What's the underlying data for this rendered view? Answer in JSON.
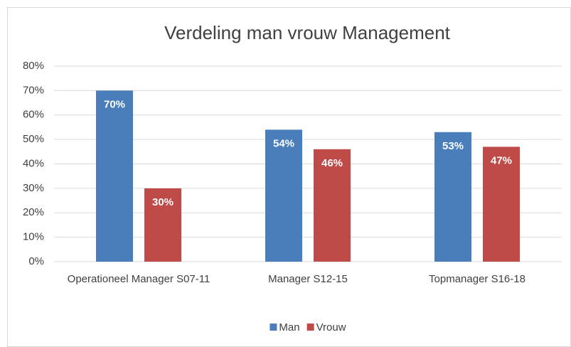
{
  "chart_data": {
    "type": "bar",
    "title": "Verdeling man vrouw Management",
    "categories": [
      "Operationeel Manager S07-11",
      "Manager S12-15",
      "Topmanager S16-18"
    ],
    "series": [
      {
        "name": "Man",
        "color": "#4a7ebb",
        "values": [
          70,
          54,
          53
        ],
        "value_labels": [
          "70%",
          "54%",
          "53%"
        ]
      },
      {
        "name": "Vrouw",
        "color": "#be4b48",
        "values": [
          30,
          46,
          47
        ],
        "value_labels": [
          "30%",
          "46%",
          "47%"
        ]
      }
    ],
    "ylim": [
      0,
      80
    ],
    "yticks": [
      {
        "value": 0,
        "label": "0%"
      },
      {
        "value": 10,
        "label": "10%"
      },
      {
        "value": 20,
        "label": "20%"
      },
      {
        "value": 30,
        "label": "30%"
      },
      {
        "value": 40,
        "label": "40%"
      },
      {
        "value": 50,
        "label": "50%"
      },
      {
        "value": 60,
        "label": "60%"
      },
      {
        "value": 70,
        "label": "70%"
      },
      {
        "value": 80,
        "label": "80%"
      }
    ],
    "grid": true,
    "legend": "bottom"
  }
}
